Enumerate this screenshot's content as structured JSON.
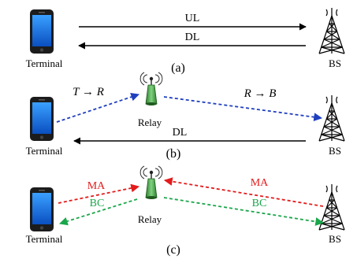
{
  "panels": {
    "a": {
      "caption": "(a)",
      "terminal": "Terminal",
      "bs": "BS",
      "uplink": "UL",
      "downlink": "DL"
    },
    "b": {
      "caption": "(b)",
      "terminal": "Terminal",
      "relay": "Relay",
      "bs": "BS",
      "t_to_r": "T → R",
      "r_to_b": "R → B",
      "downlink": "DL"
    },
    "c": {
      "caption": "(c)",
      "terminal": "Terminal",
      "relay": "Relay",
      "bs": "BS",
      "ma_left": "MA",
      "ma_right": "MA",
      "bc_left": "BC",
      "bc_right": "BC"
    }
  },
  "colors": {
    "black_link": "#000000",
    "blue_link": "#1f3fbf",
    "red_link": "#e31b1b",
    "green_link": "#1aa64a"
  },
  "icons": [
    "phone-icon",
    "relay-antenna-icon",
    "tower-icon"
  ]
}
